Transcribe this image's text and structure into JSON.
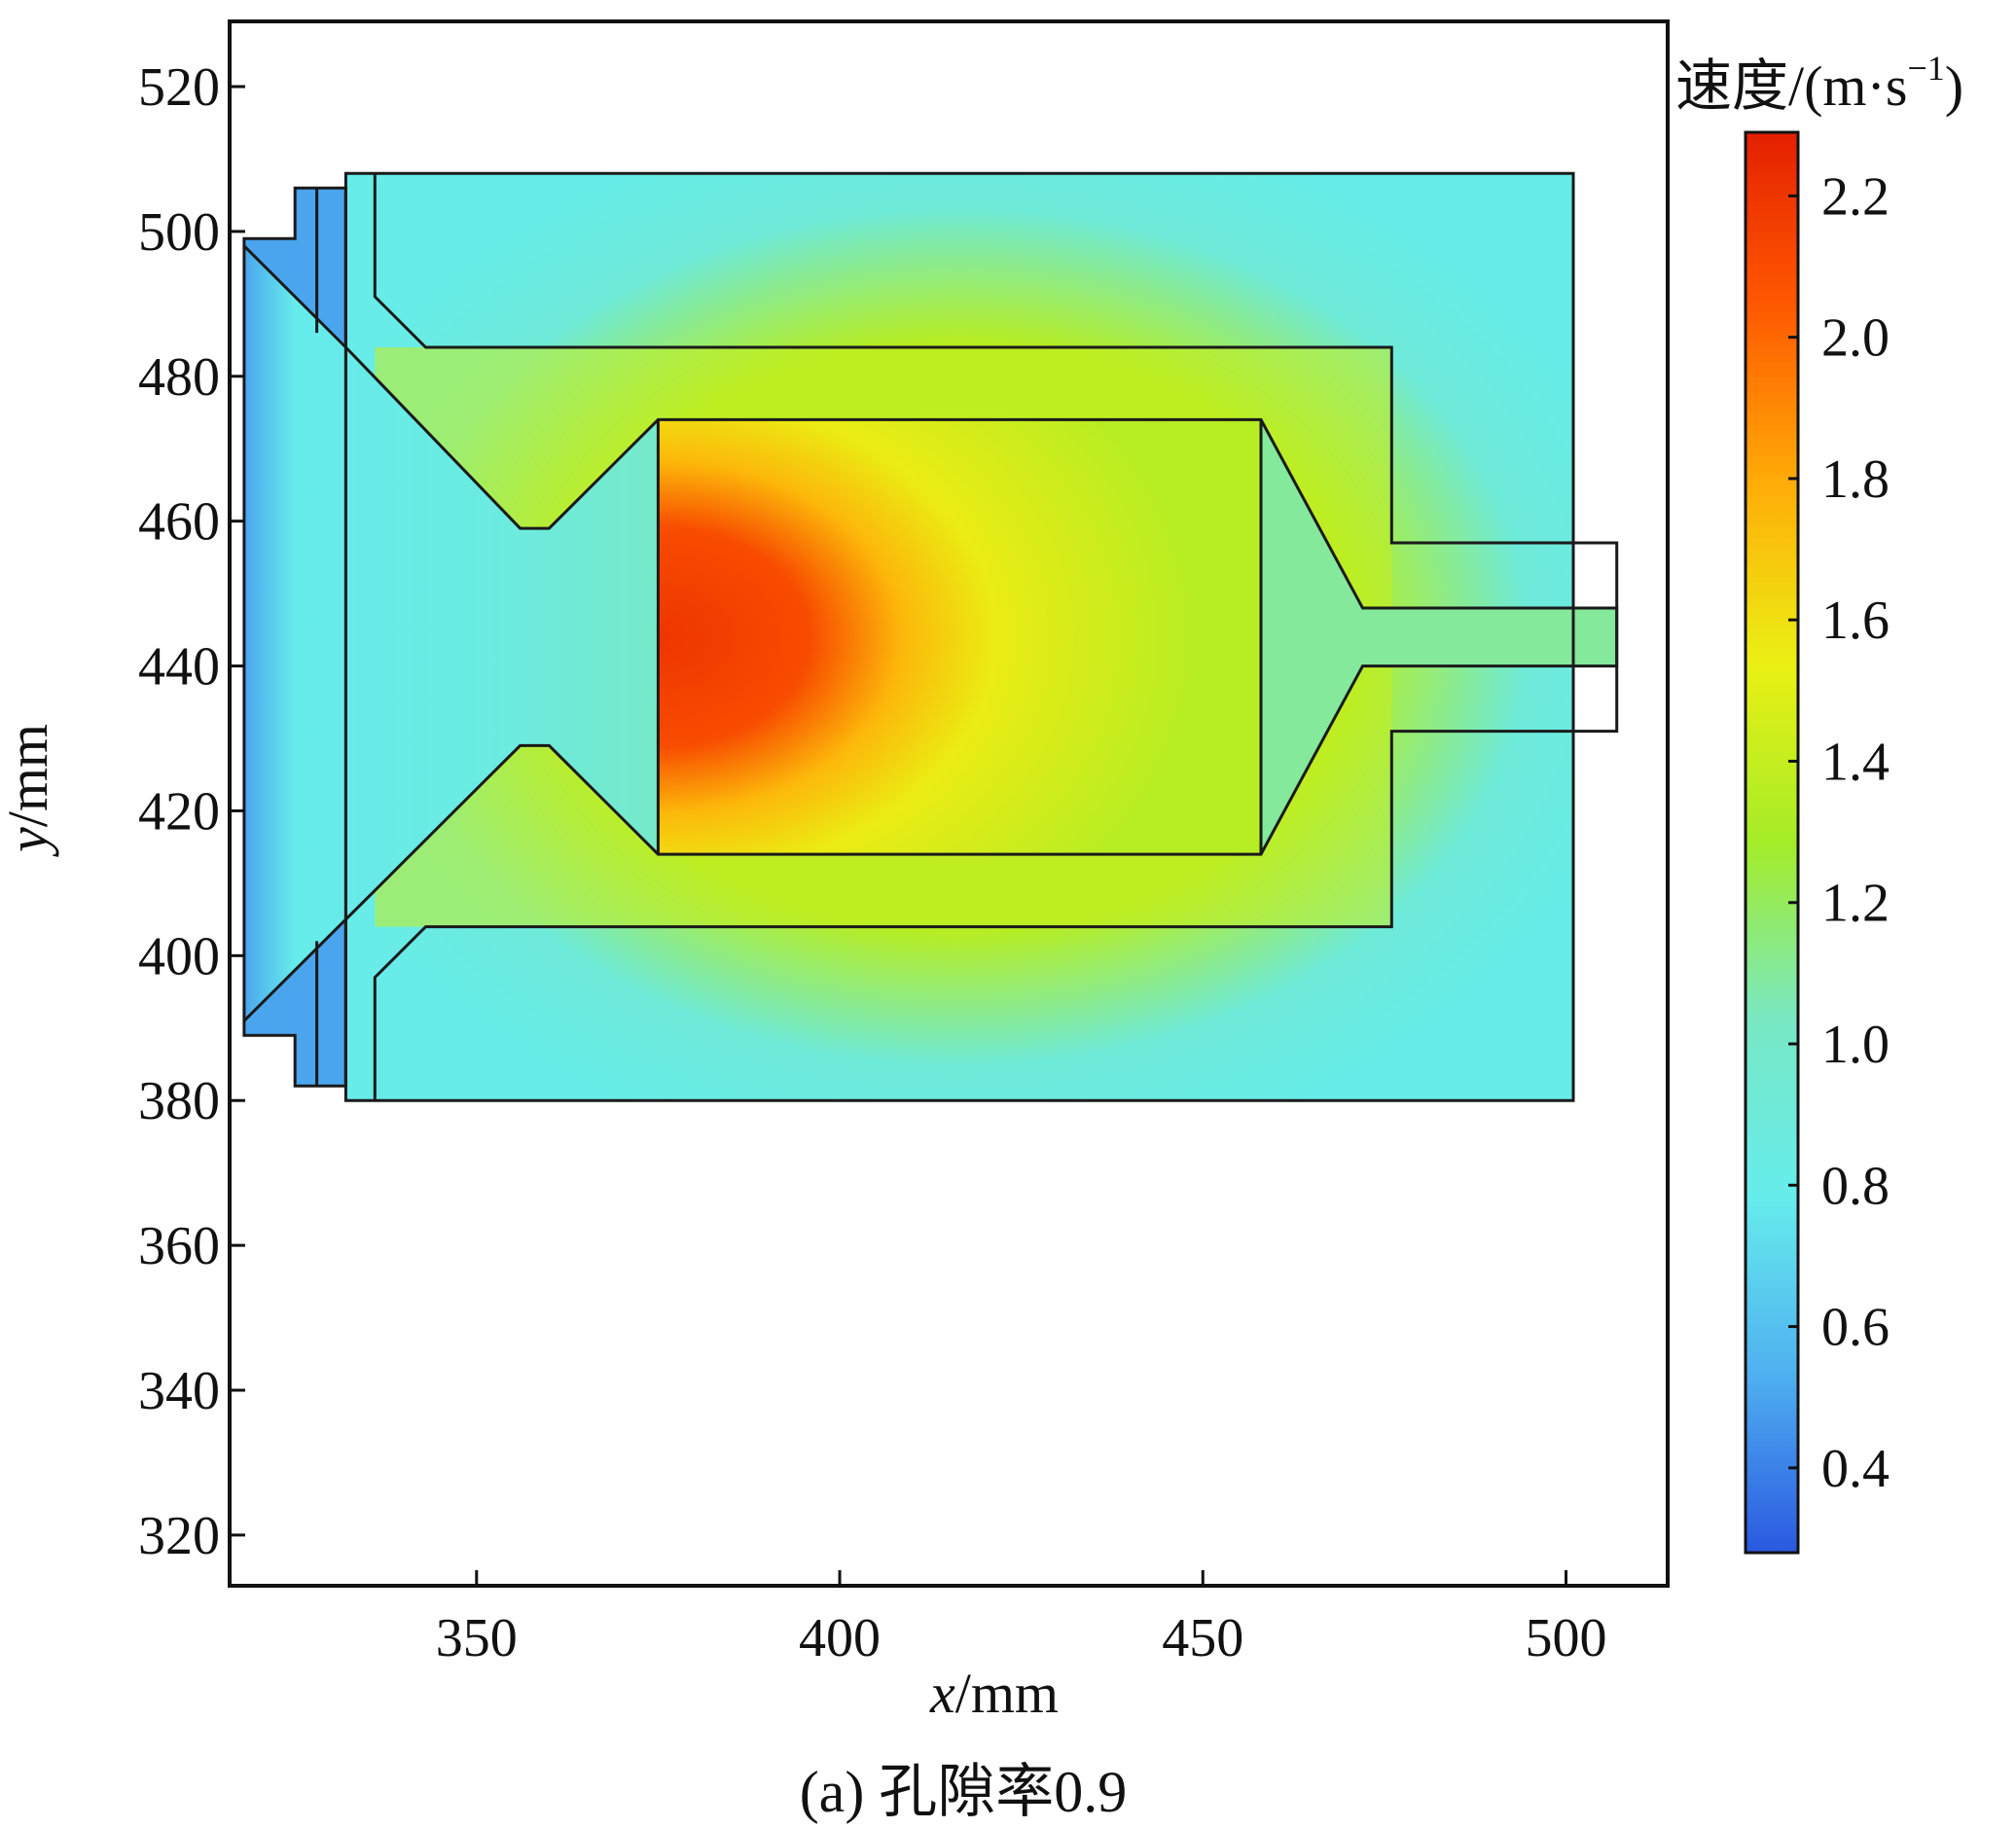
{
  "chart_data": {
    "type": "heatmap",
    "title": "",
    "caption": "(a) 孔隙率0.9",
    "xlabel": {
      "var": "x",
      "unit": "/mm"
    },
    "ylabel": {
      "var": "y",
      "unit": "/mm"
    },
    "xlim": [
      316,
      514
    ],
    "ylim": [
      313,
      529
    ],
    "x_ticks": [
      350,
      400,
      450,
      500
    ],
    "y_ticks": [
      320,
      340,
      360,
      380,
      400,
      420,
      440,
      460,
      480,
      500,
      520
    ],
    "grid": false,
    "colorbar": {
      "title": "速度/(m·s",
      "title_superscript": "−1",
      "title_close": ")",
      "range": [
        0.28,
        2.29
      ],
      "ticks": [
        0.4,
        0.6,
        0.8,
        1.0,
        1.2,
        1.4,
        1.6,
        1.8,
        2.0,
        2.2
      ],
      "tick_labels": [
        "0.4",
        "0.6",
        "0.8",
        "1.0",
        "1.2",
        "1.4",
        "1.6",
        "1.8",
        "2.0",
        "2.2"
      ],
      "colormap": "rainbow",
      "colors": [
        "#2a58e0",
        "#4fb0f0",
        "#66ecec",
        "#78e8c4",
        "#a4ec28",
        "#eaf014",
        "#ffae08",
        "#ff5a00",
        "#e42000"
      ]
    },
    "field": {
      "inlet_speed": 0.5,
      "annulus_speed": 0.9,
      "channel_speed": 1.4,
      "core_max_speed": 2.2,
      "outlet_speed": 1.1
    },
    "geometry": {
      "outer_domain": [
        [
          332,
          508
        ],
        [
          501,
          508
        ],
        [
          501,
          380
        ],
        [
          332,
          380
        ]
      ],
      "inlet_flange": [
        [
          318,
          499
        ],
        [
          325,
          499
        ],
        [
          325,
          506
        ],
        [
          332,
          506
        ],
        [
          332,
          382
        ],
        [
          325,
          382
        ],
        [
          325,
          389
        ],
        [
          318,
          389
        ]
      ],
      "inner_walls": [
        [
          [
            318,
            498
          ],
          [
            332,
            484
          ],
          [
            356,
            459
          ],
          [
            360,
            459
          ],
          [
            375,
            474
          ],
          [
            458,
            474
          ],
          [
            472,
            448
          ],
          [
            507,
            448
          ],
          [
            507,
            440
          ],
          [
            472,
            440
          ],
          [
            458,
            414
          ],
          [
            375,
            414
          ],
          [
            360,
            429
          ],
          [
            356,
            429
          ],
          [
            332,
            405
          ],
          [
            318,
            391
          ]
        ],
        [
          [
            336,
            508
          ],
          [
            336,
            491
          ],
          [
            343,
            484
          ],
          [
            476,
            484
          ],
          [
            476,
            457
          ],
          [
            507,
            457
          ],
          [
            507,
            431
          ],
          [
            476,
            431
          ],
          [
            476,
            404
          ],
          [
            343,
            404
          ],
          [
            336,
            397
          ],
          [
            336,
            380
          ]
        ],
        [
          [
            375,
            474
          ],
          [
            375,
            414
          ]
        ],
        [
          [
            458,
            474
          ],
          [
            458,
            414
          ]
        ],
        [
          [
            328,
            506
          ],
          [
            328,
            486
          ]
        ],
        [
          [
            328,
            402
          ],
          [
            328,
            382
          ]
        ],
        [
          [
            332,
            506
          ],
          [
            332,
            484
          ]
        ],
        [
          [
            332,
            405
          ],
          [
            332,
            382
          ]
        ]
      ]
    }
  }
}
